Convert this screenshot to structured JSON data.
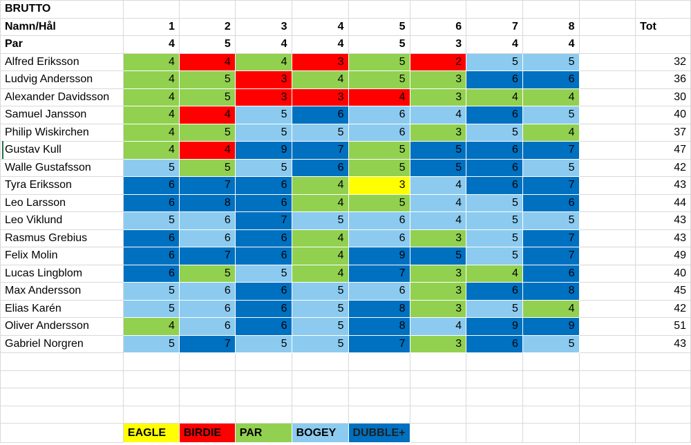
{
  "title": "BRUTTO",
  "header_label": "Namn/Hål",
  "par_label": "Par",
  "total_label": "Tot",
  "holes": [
    "1",
    "2",
    "3",
    "4",
    "5",
    "6",
    "7",
    "8"
  ],
  "par": [
    "4",
    "5",
    "4",
    "4",
    "5",
    "3",
    "4",
    "4"
  ],
  "colors": {
    "eagle": "#ffff00",
    "birdie": "#ff0000",
    "par": "#92d050",
    "bogey": "#8ccbef",
    "double": "#0070c0"
  },
  "players": [
    {
      "name": "Alfred Eriksson",
      "scores": [
        "4",
        "4",
        "4",
        "3",
        "5",
        "2",
        "5",
        "5"
      ],
      "cat": [
        "par",
        "birdie",
        "par",
        "birdie",
        "par",
        "birdie",
        "bogey",
        "bogey"
      ],
      "total": "32"
    },
    {
      "name": "Ludvig Andersson",
      "scores": [
        "4",
        "5",
        "3",
        "4",
        "5",
        "3",
        "6",
        "6"
      ],
      "cat": [
        "par",
        "par",
        "birdie",
        "par",
        "par",
        "par",
        "double",
        "double"
      ],
      "total": "36"
    },
    {
      "name": "Alexander Davidsson",
      "scores": [
        "4",
        "5",
        "3",
        "3",
        "4",
        "3",
        "4",
        "4"
      ],
      "cat": [
        "par",
        "par",
        "birdie",
        "birdie",
        "birdie",
        "par",
        "par",
        "par"
      ],
      "total": "30"
    },
    {
      "name": "Samuel Jansson",
      "scores": [
        "4",
        "4",
        "5",
        "6",
        "6",
        "4",
        "6",
        "5"
      ],
      "cat": [
        "par",
        "birdie",
        "bogey",
        "double",
        "bogey",
        "bogey",
        "double",
        "bogey"
      ],
      "total": "40"
    },
    {
      "name": "Philip Wiskirchen",
      "scores": [
        "4",
        "5",
        "5",
        "5",
        "6",
        "3",
        "5",
        "4"
      ],
      "cat": [
        "par",
        "par",
        "bogey",
        "bogey",
        "bogey",
        "par",
        "bogey",
        "par"
      ],
      "total": "37"
    },
    {
      "name": "Gustav Kull",
      "scores": [
        "4",
        "4",
        "9",
        "7",
        "5",
        "5",
        "6",
        "7"
      ],
      "cat": [
        "par",
        "birdie",
        "double",
        "double",
        "par",
        "double",
        "double",
        "double"
      ],
      "total": "47"
    },
    {
      "name": "Walle Gustafsson",
      "scores": [
        "5",
        "5",
        "5",
        "6",
        "5",
        "5",
        "6",
        "5"
      ],
      "cat": [
        "bogey",
        "par",
        "bogey",
        "double",
        "par",
        "double",
        "double",
        "bogey"
      ],
      "total": "42"
    },
    {
      "name": "Tyra Eriksson",
      "scores": [
        "6",
        "7",
        "6",
        "4",
        "3",
        "4",
        "6",
        "7"
      ],
      "cat": [
        "double",
        "double",
        "double",
        "par",
        "eagle",
        "bogey",
        "double",
        "double"
      ],
      "total": "43"
    },
    {
      "name": "Leo Larsson",
      "scores": [
        "6",
        "8",
        "6",
        "4",
        "5",
        "4",
        "5",
        "6"
      ],
      "cat": [
        "double",
        "double",
        "double",
        "par",
        "par",
        "bogey",
        "bogey",
        "double"
      ],
      "total": "44"
    },
    {
      "name": "Leo Viklund",
      "scores": [
        "5",
        "6",
        "7",
        "5",
        "6",
        "4",
        "5",
        "5"
      ],
      "cat": [
        "bogey",
        "bogey",
        "double",
        "bogey",
        "bogey",
        "bogey",
        "bogey",
        "bogey"
      ],
      "total": "43"
    },
    {
      "name": "Rasmus Grebius",
      "scores": [
        "6",
        "6",
        "6",
        "4",
        "6",
        "3",
        "5",
        "7"
      ],
      "cat": [
        "double",
        "bogey",
        "double",
        "par",
        "bogey",
        "par",
        "bogey",
        "double"
      ],
      "total": "43"
    },
    {
      "name": "Felix Molin",
      "scores": [
        "6",
        "7",
        "6",
        "4",
        "9",
        "5",
        "5",
        "7"
      ],
      "cat": [
        "double",
        "double",
        "double",
        "par",
        "double",
        "double",
        "bogey",
        "double"
      ],
      "total": "49"
    },
    {
      "name": "Lucas Lingblom",
      "scores": [
        "6",
        "5",
        "5",
        "4",
        "7",
        "3",
        "4",
        "6"
      ],
      "cat": [
        "double",
        "par",
        "bogey",
        "par",
        "double",
        "par",
        "par",
        "double"
      ],
      "total": "40"
    },
    {
      "name": "Max Andersson",
      "scores": [
        "5",
        "6",
        "6",
        "5",
        "6",
        "3",
        "6",
        "8"
      ],
      "cat": [
        "bogey",
        "bogey",
        "double",
        "bogey",
        "bogey",
        "par",
        "double",
        "double"
      ],
      "total": "45"
    },
    {
      "name": "Elias Karén",
      "scores": [
        "5",
        "6",
        "6",
        "5",
        "8",
        "3",
        "5",
        "4"
      ],
      "cat": [
        "bogey",
        "bogey",
        "double",
        "bogey",
        "double",
        "par",
        "bogey",
        "par"
      ],
      "total": "42"
    },
    {
      "name": "Oliver Andersson",
      "scores": [
        "4",
        "6",
        "6",
        "5",
        "8",
        "4",
        "9",
        "9"
      ],
      "cat": [
        "par",
        "bogey",
        "double",
        "bogey",
        "double",
        "bogey",
        "double",
        "double"
      ],
      "total": "51"
    },
    {
      "name": "Gabriel Norgren",
      "scores": [
        "5",
        "7",
        "5",
        "5",
        "7",
        "3",
        "6",
        "5"
      ],
      "cat": [
        "bogey",
        "double",
        "bogey",
        "bogey",
        "double",
        "par",
        "double",
        "bogey"
      ],
      "total": "43"
    }
  ],
  "legend": [
    {
      "label": "EAGLE",
      "cat": "eagle"
    },
    {
      "label": "BIRDIE",
      "cat": "birdie"
    },
    {
      "label": "PAR",
      "cat": "par"
    },
    {
      "label": "BOGEY",
      "cat": "bogey"
    },
    {
      "label": "DUBBLE+",
      "cat": "double"
    }
  ]
}
